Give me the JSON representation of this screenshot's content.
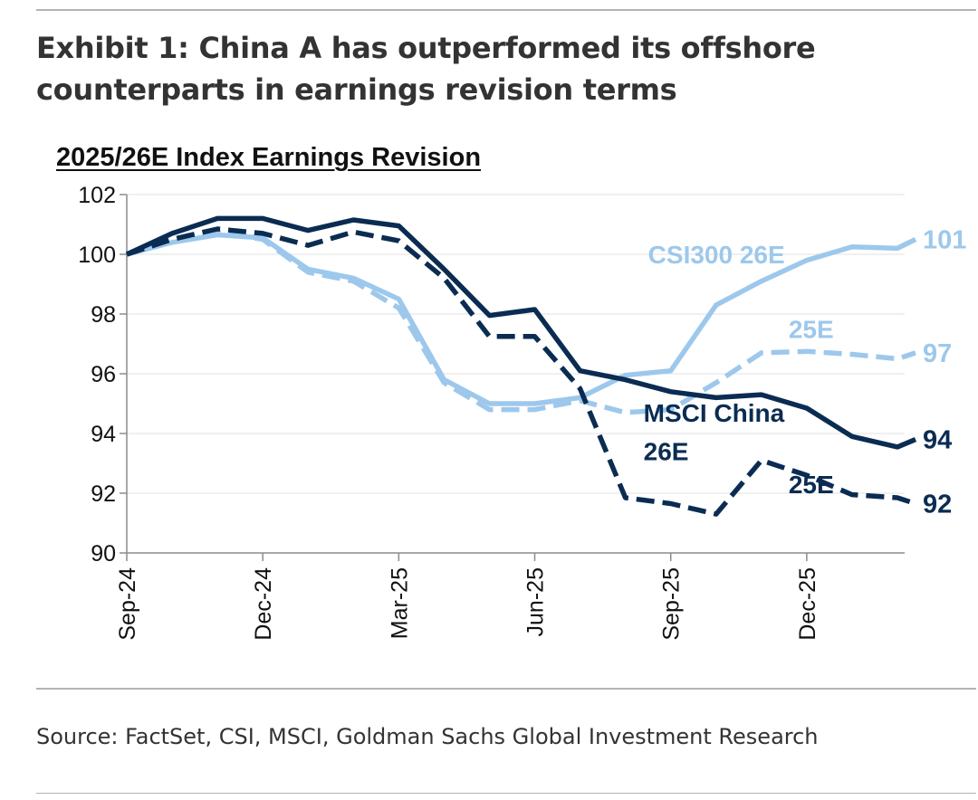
{
  "header": {
    "title_line1": "Exhibit 1: China A has outperformed its offshore",
    "title_line2": "counterparts in earnings revision terms"
  },
  "footer": {
    "source": "Source: FactSet, CSI, MSCI, Goldman Sachs Global Investment Research"
  },
  "chart_data": {
    "type": "line",
    "title": "2025/26E Index Earnings Revision",
    "xlabel": "",
    "ylabel": "",
    "ylim": [
      90,
      102
    ],
    "yticks": [
      90,
      92,
      94,
      96,
      98,
      100,
      102
    ],
    "x_range": [
      0,
      17
    ],
    "x_ticks": [
      {
        "x": 0,
        "label": "Sep-24"
      },
      {
        "x": 3,
        "label": "Dec-24"
      },
      {
        "x": 6,
        "label": "Mar-25"
      },
      {
        "x": 9,
        "label": "Jun-25"
      },
      {
        "x": 12,
        "label": "Sep-25"
      },
      {
        "x": 15,
        "label": "Dec-25"
      }
    ],
    "grid": true,
    "series": [
      {
        "name": "CSI300 26E",
        "color": "#9dc8ec",
        "dash": "solid",
        "end_label": "101",
        "points": [
          [
            0,
            100
          ],
          [
            1,
            100.4
          ],
          [
            2,
            100.65
          ],
          [
            3,
            100.55
          ],
          [
            4,
            99.5
          ],
          [
            5,
            99.2
          ],
          [
            6,
            98.5
          ],
          [
            7,
            95.8
          ],
          [
            8,
            95.0
          ],
          [
            9,
            95.0
          ],
          [
            10,
            95.2
          ],
          [
            11,
            95.95
          ],
          [
            12,
            96.1
          ],
          [
            13,
            98.3
          ],
          [
            14,
            99.1
          ],
          [
            15,
            99.8
          ],
          [
            16,
            100.25
          ],
          [
            17,
            100.2
          ],
          [
            17.4,
            100.5
          ]
        ]
      },
      {
        "name": "CSI300 25E",
        "color": "#9dc8ec",
        "dash": "dashed",
        "end_label": "97",
        "points": [
          [
            0,
            100
          ],
          [
            1,
            100.5
          ],
          [
            2,
            100.75
          ],
          [
            3,
            100.5
          ],
          [
            4,
            99.4
          ],
          [
            5,
            99.1
          ],
          [
            6,
            98.2
          ],
          [
            7,
            95.7
          ],
          [
            8,
            94.8
          ],
          [
            9,
            94.8
          ],
          [
            10,
            95.1
          ],
          [
            11,
            94.7
          ],
          [
            12,
            94.8
          ],
          [
            13,
            95.7
          ],
          [
            14,
            96.7
          ],
          [
            15,
            96.75
          ],
          [
            16,
            96.65
          ],
          [
            17,
            96.5
          ],
          [
            17.4,
            96.7
          ]
        ]
      },
      {
        "name": "MSCI China 26E",
        "color": "#0b2c52",
        "dash": "solid",
        "end_label": "94",
        "points": [
          [
            0,
            100
          ],
          [
            1,
            100.7
          ],
          [
            2,
            101.2
          ],
          [
            3,
            101.2
          ],
          [
            4,
            100.8
          ],
          [
            5,
            101.15
          ],
          [
            6,
            100.95
          ],
          [
            7,
            99.5
          ],
          [
            8,
            97.95
          ],
          [
            9,
            98.15
          ],
          [
            10,
            96.1
          ],
          [
            11,
            95.8
          ],
          [
            12,
            95.4
          ],
          [
            13,
            95.2
          ],
          [
            14,
            95.3
          ],
          [
            15,
            94.85
          ],
          [
            16,
            93.9
          ],
          [
            17,
            93.55
          ],
          [
            17.4,
            93.8
          ]
        ]
      },
      {
        "name": "MSCI China 25E",
        "color": "#0b2c52",
        "dash": "dashed",
        "end_label": "92",
        "points": [
          [
            0,
            100
          ],
          [
            1,
            100.5
          ],
          [
            2,
            100.85
          ],
          [
            3,
            100.7
          ],
          [
            4,
            100.3
          ],
          [
            5,
            100.75
          ],
          [
            6,
            100.45
          ],
          [
            7,
            99.2
          ],
          [
            8,
            97.25
          ],
          [
            9,
            97.25
          ],
          [
            10,
            95.5
          ],
          [
            11,
            91.85
          ],
          [
            12,
            91.65
          ],
          [
            13,
            91.3
          ],
          [
            14,
            93.1
          ],
          [
            15,
            92.6
          ],
          [
            16,
            91.95
          ],
          [
            17,
            91.85
          ],
          [
            17.4,
            91.65
          ]
        ]
      }
    ],
    "annotations": [
      {
        "text": "CSI300 26E",
        "color": "#9dc8ec",
        "x": 11.5,
        "y": 99.7
      },
      {
        "text": "25E",
        "color": "#9dc8ec",
        "x": 14.6,
        "y": 97.2
      },
      {
        "text": "MSCI China",
        "color": "#0b2c52",
        "x": 11.4,
        "y": 94.4
      },
      {
        "text": "26E",
        "color": "#0b2c52",
        "x": 11.4,
        "y": 93.1
      },
      {
        "text": "25E",
        "color": "#0b2c52",
        "x": 14.6,
        "y": 92.0
      }
    ]
  }
}
